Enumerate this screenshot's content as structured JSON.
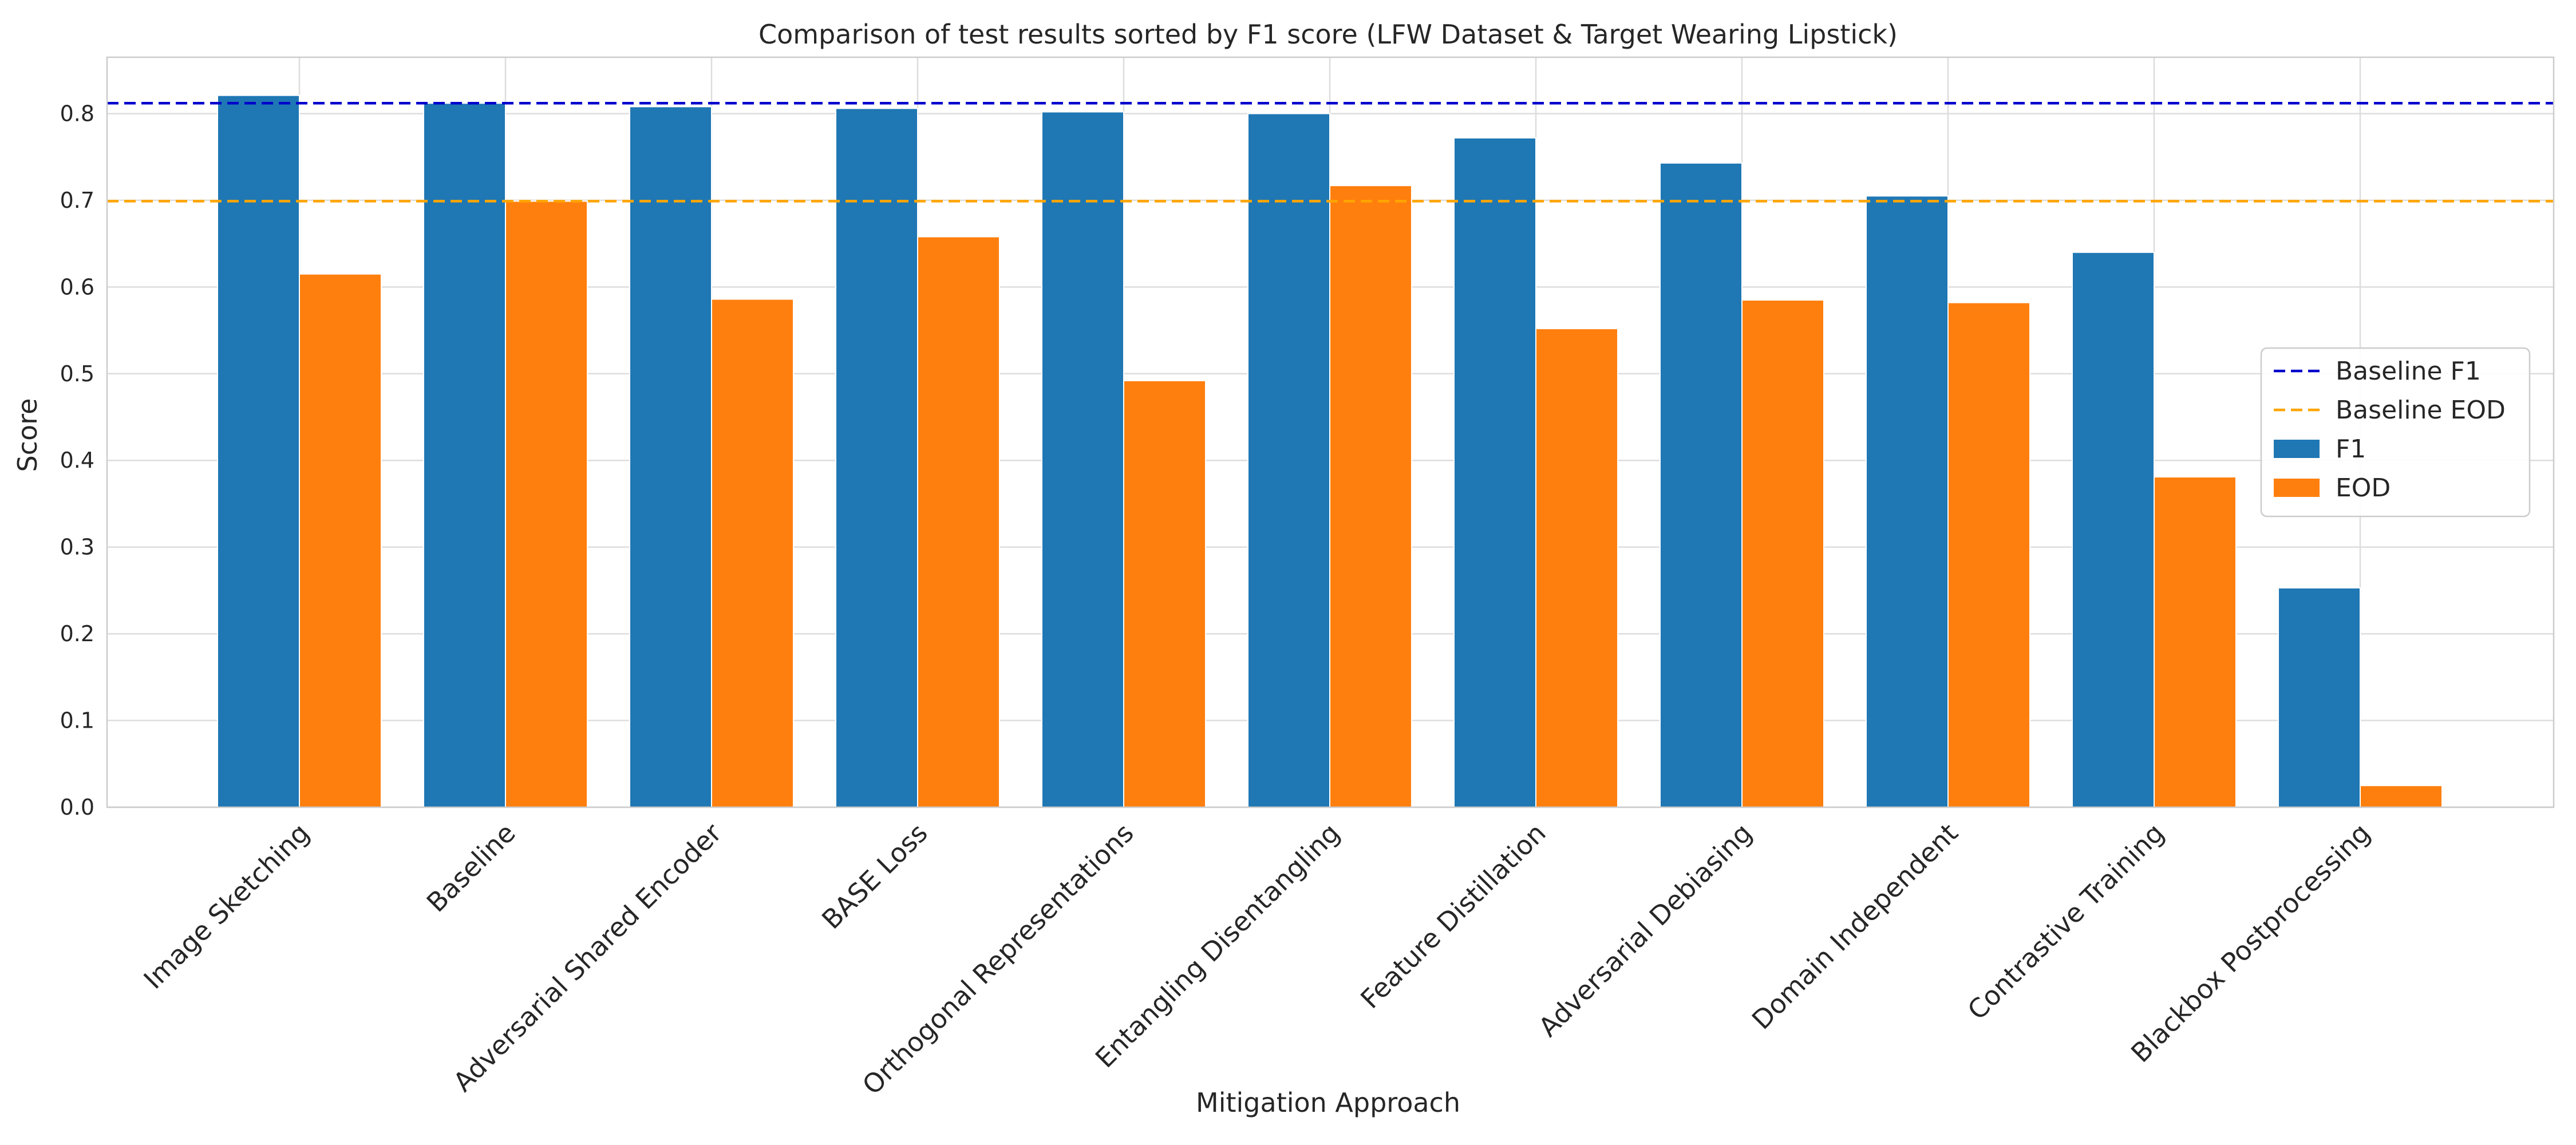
{
  "chart_data": {
    "type": "bar",
    "title": "Comparison of test results sorted by F1 score (LFW Dataset & Target Wearing Lipstick)",
    "xlabel": "Mitigation Approach",
    "ylabel": "Score",
    "ylim": [
      0,
      0.865
    ],
    "yticks": [
      0.0,
      0.1,
      0.2,
      0.3,
      0.4,
      0.5,
      0.6,
      0.7,
      0.8
    ],
    "ytick_labels": [
      "0.0",
      "0.1",
      "0.2",
      "0.3",
      "0.4",
      "0.5",
      "0.6",
      "0.7",
      "0.8"
    ],
    "grid": true,
    "legend_position": "right",
    "categories": [
      "Image Sketching",
      "Baseline",
      "Adversarial Shared Encoder",
      "BASE Loss",
      "Orthogonal Representations",
      "Entangling Disentangling",
      "Feature Distillation",
      "Adversarial Debiasing",
      "Domain Independent",
      "Contrastive Training",
      "Blackbox Postprocessing"
    ],
    "series": [
      {
        "name": "F1",
        "color": "#1f77b4",
        "values": [
          0.821,
          0.812,
          0.808,
          0.806,
          0.802,
          0.8,
          0.772,
          0.743,
          0.705,
          0.64,
          0.253
        ]
      },
      {
        "name": "EOD",
        "color": "#ff7f0e",
        "values": [
          0.615,
          0.699,
          0.586,
          0.658,
          0.492,
          0.717,
          0.552,
          0.585,
          0.582,
          0.381,
          0.025
        ]
      }
    ],
    "reference_lines": [
      {
        "name": "Baseline F1",
        "value": 0.812,
        "color": "#0000cc",
        "style": "dashed"
      },
      {
        "name": "Baseline EOD",
        "value": 0.699,
        "color": "#ffa500",
        "style": "dashed"
      }
    ]
  }
}
